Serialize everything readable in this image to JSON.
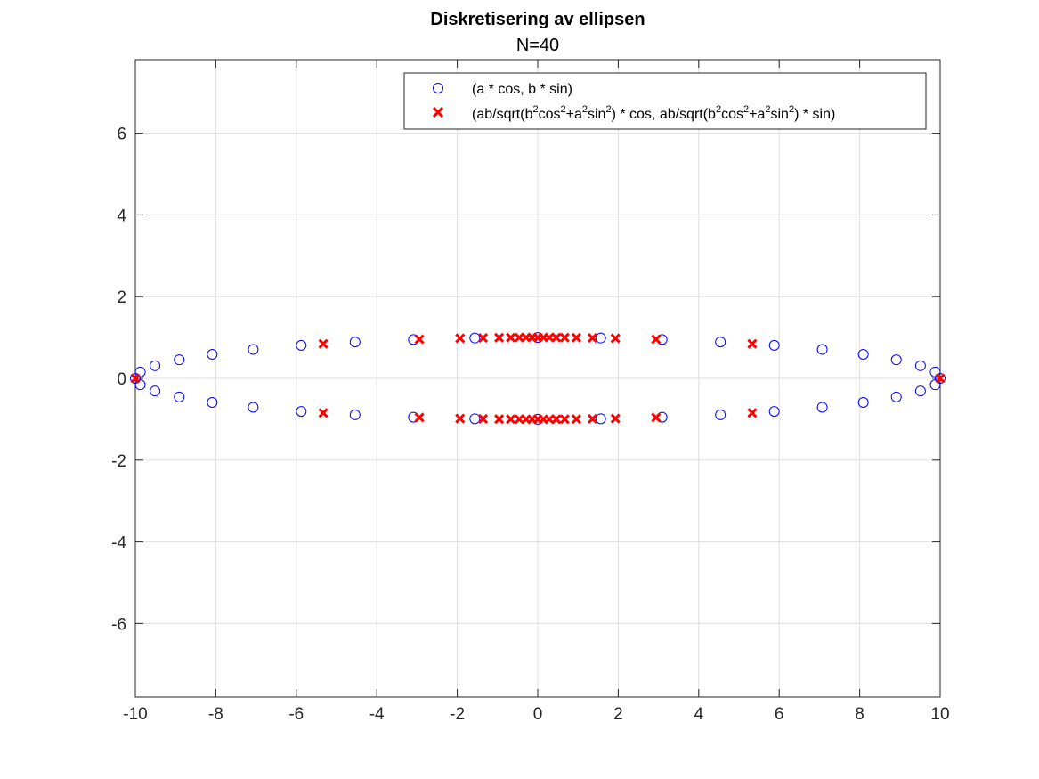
{
  "chart_data": {
    "type": "scatter",
    "title": "Diskretisering av ellipsen",
    "subtitle": "N=40",
    "xlabel": "",
    "ylabel": "",
    "xlim": [
      -10,
      10
    ],
    "ylim": [
      -7.8,
      7.8
    ],
    "xticks": [
      -10,
      -8,
      -6,
      -4,
      -2,
      0,
      2,
      4,
      6,
      8,
      10
    ],
    "yticks": [
      -6,
      -4,
      -2,
      0,
      2,
      4,
      6
    ],
    "xtick_labels": [
      "-10",
      "-8",
      "-6",
      "-4",
      "-2",
      "0",
      "2",
      "4",
      "6",
      "8",
      "10"
    ],
    "ytick_labels": [
      "-6",
      "-4",
      "-2",
      "0",
      "2",
      "4",
      "6"
    ],
    "grid": true,
    "legend_position": "top-right",
    "series": [
      {
        "name": "(a * cos, b * sin)",
        "marker": "circle",
        "color": "#0000ff",
        "x": [
          10,
          9.877,
          9.511,
          8.91,
          8.09,
          7.071,
          5.878,
          4.54,
          3.09,
          1.564,
          0,
          -1.564,
          -3.09,
          -4.54,
          -5.878,
          -7.071,
          -8.09,
          -8.91,
          -9.511,
          -9.877,
          -10,
          -9.877,
          -9.511,
          -8.91,
          -8.09,
          -7.071,
          -5.878,
          -4.54,
          -3.09,
          -1.564,
          0,
          1.564,
          3.09,
          4.54,
          5.878,
          7.071,
          8.09,
          8.91,
          9.511,
          9.877
        ],
        "y": [
          0,
          0.156,
          0.309,
          0.454,
          0.588,
          0.707,
          0.809,
          0.891,
          0.951,
          0.988,
          1.0,
          0.988,
          0.951,
          0.891,
          0.809,
          0.707,
          0.588,
          0.454,
          0.309,
          0.156,
          0,
          -0.156,
          -0.309,
          -0.454,
          -0.588,
          -0.707,
          -0.809,
          -0.891,
          -0.951,
          -0.988,
          -1.0,
          -0.988,
          -0.951,
          -0.891,
          -0.809,
          -0.707,
          -0.588,
          -0.454,
          -0.309,
          -0.156
        ]
      },
      {
        "name": "(ab/sqrt(b2cos2+a2sin2) * cos, ab/sqrt(b2cos2+a2sin2) * sin)",
        "marker": "x",
        "color": "#ff0000",
        "x": [
          10,
          5.33,
          2.94,
          1.93,
          1.36,
          0.96,
          0.67,
          0.46,
          0.29,
          0.14,
          0,
          -0.14,
          -0.29,
          -0.46,
          -0.67,
          -0.96,
          -1.36,
          -1.93,
          -2.94,
          -5.33,
          -10,
          -5.33,
          -2.94,
          -1.93,
          -1.36,
          -0.96,
          -0.67,
          -0.46,
          -0.29,
          -0.14,
          0,
          0.14,
          0.29,
          0.46,
          0.67,
          0.96,
          1.36,
          1.93,
          2.94,
          5.33
        ],
        "y": [
          0,
          0.846,
          0.956,
          0.981,
          0.991,
          0.995,
          0.998,
          0.999,
          1.0,
          1.0,
          1.0,
          1.0,
          1.0,
          0.999,
          0.998,
          0.995,
          0.991,
          0.981,
          0.956,
          0.846,
          0,
          -0.846,
          -0.956,
          -0.981,
          -0.991,
          -0.995,
          -0.998,
          -0.999,
          -1.0,
          -1.0,
          -1.0,
          -1.0,
          -1.0,
          -0.999,
          -0.998,
          -0.995,
          -0.991,
          -0.981,
          -0.956,
          -0.846
        ]
      }
    ],
    "legend": {
      "entry1": "(a * cos, b * sin)",
      "entry2_parts": [
        "(ab/sqrt(b",
        "2",
        "cos",
        "2",
        "+a",
        "2",
        "sin",
        "2",
        ") * cos, ab/sqrt(b",
        "2",
        "cos",
        "2",
        "+a",
        "2",
        "sin",
        "2",
        ") * sin)"
      ]
    }
  }
}
